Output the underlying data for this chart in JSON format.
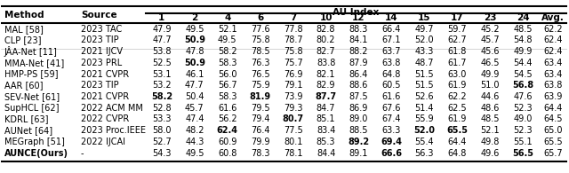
{
  "title": "AU Index",
  "col_headers": [
    "Method",
    "Source",
    "1",
    "2",
    "4",
    "6",
    "7",
    "10",
    "12",
    "14",
    "15",
    "17",
    "23",
    "24",
    "Avg."
  ],
  "rows": [
    [
      "MAL [58]",
      "2023 TAC",
      "47.9",
      "49.5",
      "52.1",
      "77.6",
      "77.8",
      "82.8",
      "88.3",
      "66.4",
      "49.7",
      "59.7",
      "45.2",
      "48.5",
      "62.2"
    ],
    [
      "CLP [23]",
      "2023 TIP",
      "47.7",
      "50.9",
      "49.5",
      "75.8",
      "78.7",
      "80.2",
      "84.1",
      "67.1",
      "52.0",
      "62.7",
      "45.7",
      "54.8",
      "62.4"
    ],
    [
      "JÂA-Net [11]",
      "2021 IJCV",
      "53.8",
      "47.8",
      "58.2",
      "78.5",
      "75.8",
      "82.7",
      "88.2",
      "63.7",
      "43.3",
      "61.8",
      "45.6",
      "49.9",
      "62.4"
    ],
    [
      "MMA-Net [41]",
      "2023 PRL",
      "52.5",
      "50.9",
      "58.3",
      "76.3",
      "75.7",
      "83.8",
      "87.9",
      "63.8",
      "48.7",
      "61.7",
      "46.5",
      "54.4",
      "63.4"
    ],
    [
      "HMP-PS [59]",
      "2021 CVPR",
      "53.1",
      "46.1",
      "56.0",
      "76.5",
      "76.9",
      "82.1",
      "86.4",
      "64.8",
      "51.5",
      "63.0",
      "49.9",
      "54.5",
      "63.4"
    ],
    [
      "AAR [60]",
      "2023 TIP",
      "53.2",
      "47.7",
      "56.7",
      "75.9",
      "79.1",
      "82.9",
      "88.6",
      "60.5",
      "51.5",
      "61.9",
      "51.0",
      "56.8",
      "63.8"
    ],
    [
      "SEV-Net [61]",
      "2021 CVPR",
      "58.2",
      "50.4",
      "58.3",
      "81.9",
      "73.9",
      "87.7",
      "87.5",
      "61.6",
      "52.6",
      "62.2",
      "44.6",
      "47.6",
      "63.9"
    ],
    [
      "SupHCL [62]",
      "2022 ACM MM",
      "52.8",
      "45.7",
      "61.6",
      "79.5",
      "79.3",
      "84.7",
      "86.9",
      "67.6",
      "51.4",
      "62.5",
      "48.6",
      "52.3",
      "64.4"
    ],
    [
      "KDRL [63]",
      "2022 CVPR",
      "53.3",
      "47.4",
      "56.2",
      "79.4",
      "80.7",
      "85.1",
      "89.0",
      "67.4",
      "55.9",
      "61.9",
      "48.5",
      "49.0",
      "64.5"
    ],
    [
      "AUNet [64]",
      "2023 Proc.IEEE",
      "58.0",
      "48.2",
      "62.4",
      "76.4",
      "77.5",
      "83.4",
      "88.5",
      "63.3",
      "52.0",
      "65.5",
      "52.1",
      "52.3",
      "65.0"
    ],
    [
      "MEGraph [51]",
      "2022 IJCAI",
      "52.7",
      "44.3",
      "60.9",
      "79.9",
      "80.1",
      "85.3",
      "89.2",
      "69.4",
      "55.4",
      "64.4",
      "49.8",
      "55.1",
      "65.5"
    ],
    [
      "AUNCE(Ours)",
      "-",
      "54.3",
      "49.5",
      "60.8",
      "78.3",
      "78.1",
      "84.4",
      "89.1",
      "66.6",
      "56.3",
      "64.8",
      "49.6",
      "56.5",
      "65.7"
    ]
  ],
  "bold_cells": [
    [
      0,
      2,
      false
    ],
    [
      0,
      3,
      false
    ],
    [
      1,
      3,
      true
    ],
    [
      2,
      2,
      false
    ],
    [
      3,
      3,
      true
    ],
    [
      6,
      2,
      true
    ],
    [
      6,
      5,
      true
    ],
    [
      6,
      7,
      true
    ],
    [
      7,
      2,
      false
    ],
    [
      8,
      6,
      true
    ],
    [
      9,
      4,
      true
    ],
    [
      9,
      11,
      true
    ],
    [
      9,
      10,
      true
    ],
    [
      10,
      8,
      true
    ],
    [
      10,
      9,
      true
    ],
    [
      11,
      9,
      true
    ],
    [
      11,
      12,
      true
    ]
  ],
  "bold_method": [
    6,
    7,
    8,
    9,
    10,
    11
  ],
  "last_row_bold": true,
  "bg_color": "#ffffff",
  "header_line_color": "#000000",
  "font_size": 7.0,
  "header_font_size": 7.5
}
